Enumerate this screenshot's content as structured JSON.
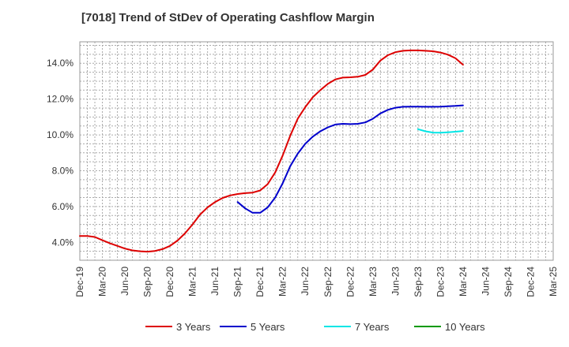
{
  "chart_data": {
    "type": "line",
    "title": "[7018]  Trend of StDev of Operating Cashflow Margin",
    "xlabel": "",
    "ylabel": "",
    "x_ticks": [
      "Dec-19",
      "Mar-20",
      "Jun-20",
      "Sep-20",
      "Dec-20",
      "Mar-21",
      "Jun-21",
      "Sep-21",
      "Dec-21",
      "Mar-22",
      "Jun-22",
      "Sep-22",
      "Dec-22",
      "Mar-23",
      "Jun-23",
      "Sep-23",
      "Dec-23",
      "Mar-24",
      "Jun-24",
      "Sep-24",
      "Dec-24",
      "Mar-25"
    ],
    "y_ticks": [
      "4.0%",
      "6.0%",
      "8.0%",
      "10.0%",
      "12.0%",
      "14.0%"
    ],
    "y_tick_values": [
      4,
      6,
      8,
      10,
      12,
      14
    ],
    "ylim": [
      3.0,
      15.2
    ],
    "grid": true,
    "legend_position": "bottom",
    "series": [
      {
        "name": "3 Years",
        "color": "#dd0000",
        "points": [
          [
            "Dec-19",
            4.35
          ],
          [
            "Jan-20",
            4.35
          ],
          [
            "Feb-20",
            4.3
          ],
          [
            "Mar-20",
            4.12
          ],
          [
            "Apr-20",
            3.95
          ],
          [
            "May-20",
            3.8
          ],
          [
            "Jun-20",
            3.65
          ],
          [
            "Jul-20",
            3.55
          ],
          [
            "Aug-20",
            3.5
          ],
          [
            "Sep-20",
            3.48
          ],
          [
            "Oct-20",
            3.52
          ],
          [
            "Nov-20",
            3.62
          ],
          [
            "Dec-20",
            3.8
          ],
          [
            "Jan-21",
            4.1
          ],
          [
            "Feb-21",
            4.5
          ],
          [
            "Mar-21",
            5.0
          ],
          [
            "Apr-21",
            5.55
          ],
          [
            "May-21",
            5.95
          ],
          [
            "Jun-21",
            6.25
          ],
          [
            "Jul-21",
            6.48
          ],
          [
            "Aug-21",
            6.62
          ],
          [
            "Sep-21",
            6.7
          ],
          [
            "Oct-21",
            6.75
          ],
          [
            "Nov-21",
            6.78
          ],
          [
            "Dec-21",
            6.9
          ],
          [
            "Jan-22",
            7.25
          ],
          [
            "Feb-22",
            7.9
          ],
          [
            "Mar-22",
            8.85
          ],
          [
            "Apr-22",
            9.95
          ],
          [
            "May-22",
            10.9
          ],
          [
            "Jun-22",
            11.55
          ],
          [
            "Jul-22",
            12.1
          ],
          [
            "Aug-22",
            12.5
          ],
          [
            "Sep-22",
            12.85
          ],
          [
            "Oct-22",
            13.1
          ],
          [
            "Nov-22",
            13.2
          ],
          [
            "Dec-22",
            13.22
          ],
          [
            "Jan-23",
            13.25
          ],
          [
            "Feb-23",
            13.35
          ],
          [
            "Mar-23",
            13.65
          ],
          [
            "Apr-23",
            14.15
          ],
          [
            "May-23",
            14.45
          ],
          [
            "Jun-23",
            14.62
          ],
          [
            "Jul-23",
            14.7
          ],
          [
            "Aug-23",
            14.72
          ],
          [
            "Sep-23",
            14.72
          ],
          [
            "Oct-23",
            14.7
          ],
          [
            "Nov-23",
            14.67
          ],
          [
            "Dec-23",
            14.6
          ],
          [
            "Jan-24",
            14.48
          ],
          [
            "Feb-24",
            14.28
          ],
          [
            "Mar-24",
            13.92
          ]
        ]
      },
      {
        "name": "5 Years",
        "color": "#0000cc",
        "points": [
          [
            "Sep-21",
            6.25
          ],
          [
            "Oct-21",
            5.9
          ],
          [
            "Nov-21",
            5.65
          ],
          [
            "Dec-21",
            5.65
          ],
          [
            "Jan-22",
            5.95
          ],
          [
            "Feb-22",
            6.5
          ],
          [
            "Mar-22",
            7.3
          ],
          [
            "Apr-22",
            8.25
          ],
          [
            "May-22",
            8.95
          ],
          [
            "Jun-22",
            9.5
          ],
          [
            "Jul-22",
            9.9
          ],
          [
            "Aug-22",
            10.2
          ],
          [
            "Sep-22",
            10.42
          ],
          [
            "Oct-22",
            10.58
          ],
          [
            "Nov-22",
            10.62
          ],
          [
            "Dec-22",
            10.6
          ],
          [
            "Jan-23",
            10.62
          ],
          [
            "Feb-23",
            10.7
          ],
          [
            "Mar-23",
            10.9
          ],
          [
            "Apr-23",
            11.2
          ],
          [
            "May-23",
            11.4
          ],
          [
            "Jun-23",
            11.52
          ],
          [
            "Jul-23",
            11.57
          ],
          [
            "Aug-23",
            11.58
          ],
          [
            "Sep-23",
            11.58
          ],
          [
            "Oct-23",
            11.57
          ],
          [
            "Nov-23",
            11.57
          ],
          [
            "Dec-23",
            11.58
          ],
          [
            "Jan-24",
            11.6
          ],
          [
            "Feb-24",
            11.62
          ],
          [
            "Mar-24",
            11.65
          ]
        ]
      },
      {
        "name": "7 Years",
        "color": "#00e5e5",
        "points": [
          [
            "Sep-23",
            10.32
          ],
          [
            "Oct-23",
            10.2
          ],
          [
            "Nov-23",
            10.13
          ],
          [
            "Dec-23",
            10.12
          ],
          [
            "Jan-24",
            10.15
          ],
          [
            "Feb-24",
            10.18
          ],
          [
            "Mar-24",
            10.22
          ]
        ]
      },
      {
        "name": "10 Years",
        "color": "#009900",
        "points": []
      }
    ]
  }
}
